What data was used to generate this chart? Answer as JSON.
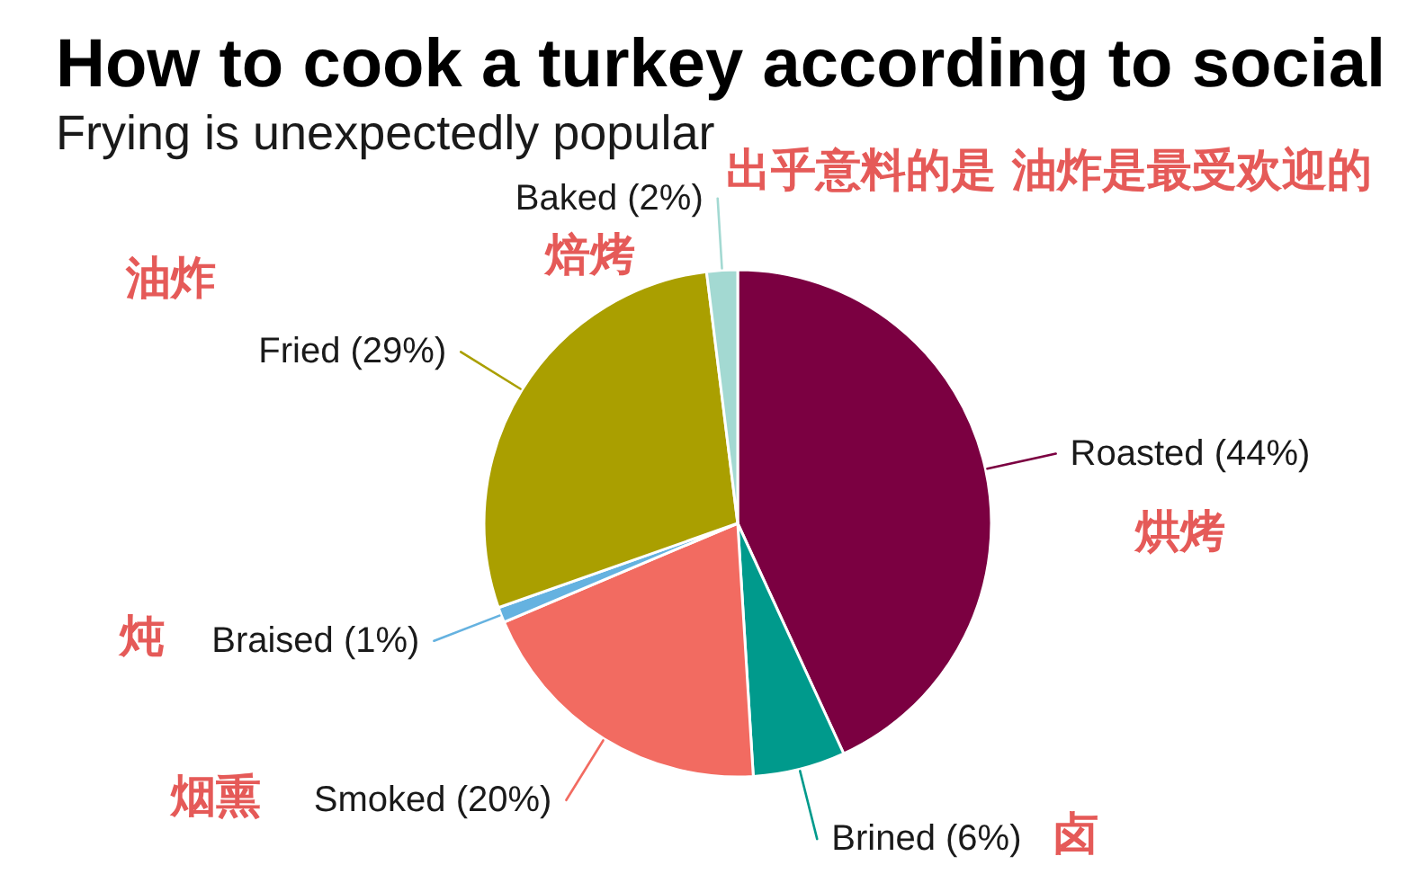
{
  "chart_data": {
    "type": "pie",
    "title": "How to cook a turkey according to social",
    "subtitle": "Frying is unexpectedly popular",
    "categories": [
      "Roasted (44%)",
      "Brined (6%)",
      "Smoked (20%)",
      "Braised (1%)",
      "Fried (29%)",
      "Baked (2%)"
    ],
    "values": [
      44,
      6,
      20,
      1,
      29,
      2
    ],
    "colors": [
      "#7b0041",
      "#009a8c",
      "#f26b61",
      "#65b2e0",
      "#aa9f00",
      "#a3d9d2"
    ],
    "annotations": [
      "出乎意料的是 油炸是最受欢迎的",
      "油炸",
      "焙烤",
      "烘烤",
      "炖",
      "烟熏",
      "卤"
    ]
  }
}
